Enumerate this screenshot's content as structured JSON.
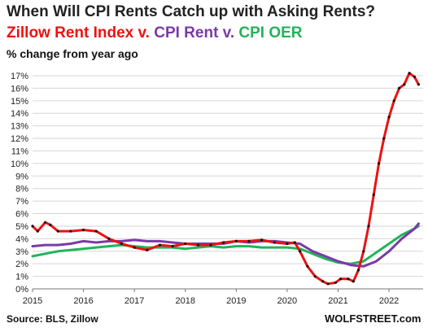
{
  "title": "When Will CPI Rents Catch up with Asking Rents?",
  "subtitle_parts": [
    {
      "text": "Zillow Rent Index v. ",
      "color": "#ee1111"
    },
    {
      "text": "CPI Rent v. ",
      "color": "#7a3aa8"
    },
    {
      "text": "CPI OER",
      "color": "#22b35a"
    }
  ],
  "unit_label": "% change from year ago",
  "source": "Source: BLS, Zillow",
  "brand": "WOLFSTREET.com",
  "chart_data": {
    "type": "line",
    "title": "When Will CPI Rents Catch up with Asking Rents?",
    "ylabel": "% change from year ago",
    "ylim": [
      0,
      17
    ],
    "yticks": [
      "0%",
      "1%",
      "2%",
      "3%",
      "4%",
      "5%",
      "6%",
      "7%",
      "8%",
      "9%",
      "10%",
      "11%",
      "12%",
      "13%",
      "14%",
      "15%",
      "16%",
      "17%"
    ],
    "xticks": [
      "2015",
      "2016",
      "2017",
      "2018",
      "2019",
      "2020",
      "2021",
      "2022"
    ],
    "grid": "horizontal",
    "series": [
      {
        "name": "Zillow Rent Index",
        "color": "#ee1111",
        "points": [
          [
            2015.0,
            5.0
          ],
          [
            2015.1,
            4.6
          ],
          [
            2015.25,
            5.3
          ],
          [
            2015.35,
            5.1
          ],
          [
            2015.5,
            4.6
          ],
          [
            2015.75,
            4.6
          ],
          [
            2016.0,
            4.7
          ],
          [
            2016.25,
            4.6
          ],
          [
            2016.5,
            4.0
          ],
          [
            2016.75,
            3.6
          ],
          [
            2017.0,
            3.3
          ],
          [
            2017.25,
            3.1
          ],
          [
            2017.5,
            3.5
          ],
          [
            2017.75,
            3.4
          ],
          [
            2018.0,
            3.6
          ],
          [
            2018.25,
            3.5
          ],
          [
            2018.5,
            3.5
          ],
          [
            2018.75,
            3.7
          ],
          [
            2019.0,
            3.8
          ],
          [
            2019.25,
            3.8
          ],
          [
            2019.5,
            3.9
          ],
          [
            2019.75,
            3.7
          ],
          [
            2020.0,
            3.6
          ],
          [
            2020.15,
            3.7
          ],
          [
            2020.25,
            3.0
          ],
          [
            2020.4,
            1.8
          ],
          [
            2020.55,
            1.0
          ],
          [
            2020.7,
            0.6
          ],
          [
            2020.8,
            0.4
          ],
          [
            2020.95,
            0.5
          ],
          [
            2021.05,
            0.8
          ],
          [
            2021.2,
            0.8
          ],
          [
            2021.3,
            0.6
          ],
          [
            2021.4,
            1.5
          ],
          [
            2021.5,
            3.0
          ],
          [
            2021.6,
            5.0
          ],
          [
            2021.7,
            7.5
          ],
          [
            2021.8,
            10.0
          ],
          [
            2021.9,
            12.0
          ],
          [
            2022.0,
            13.7
          ],
          [
            2022.1,
            15.0
          ],
          [
            2022.2,
            16.0
          ],
          [
            2022.3,
            16.3
          ],
          [
            2022.4,
            17.2
          ],
          [
            2022.5,
            16.9
          ],
          [
            2022.58,
            16.3
          ]
        ]
      },
      {
        "name": "CPI Rent",
        "color": "#7a3aa8",
        "points": [
          [
            2015.0,
            3.4
          ],
          [
            2015.25,
            3.5
          ],
          [
            2015.5,
            3.5
          ],
          [
            2015.75,
            3.6
          ],
          [
            2016.0,
            3.8
          ],
          [
            2016.25,
            3.7
          ],
          [
            2016.5,
            3.8
          ],
          [
            2016.75,
            3.8
          ],
          [
            2017.0,
            3.9
          ],
          [
            2017.25,
            3.8
          ],
          [
            2017.5,
            3.8
          ],
          [
            2017.75,
            3.7
          ],
          [
            2018.0,
            3.6
          ],
          [
            2018.25,
            3.6
          ],
          [
            2018.5,
            3.6
          ],
          [
            2018.75,
            3.6
          ],
          [
            2019.0,
            3.8
          ],
          [
            2019.25,
            3.7
          ],
          [
            2019.5,
            3.8
          ],
          [
            2019.75,
            3.8
          ],
          [
            2020.0,
            3.7
          ],
          [
            2020.25,
            3.6
          ],
          [
            2020.5,
            3.0
          ],
          [
            2020.75,
            2.6
          ],
          [
            2021.0,
            2.2
          ],
          [
            2021.25,
            1.9
          ],
          [
            2021.5,
            1.8
          ],
          [
            2021.75,
            2.2
          ],
          [
            2022.0,
            3.0
          ],
          [
            2022.25,
            4.0
          ],
          [
            2022.5,
            4.8
          ],
          [
            2022.58,
            5.2
          ]
        ]
      },
      {
        "name": "CPI OER",
        "color": "#22b35a",
        "points": [
          [
            2015.0,
            2.6
          ],
          [
            2015.25,
            2.8
          ],
          [
            2015.5,
            3.0
          ],
          [
            2015.75,
            3.1
          ],
          [
            2016.0,
            3.2
          ],
          [
            2016.25,
            3.3
          ],
          [
            2016.5,
            3.4
          ],
          [
            2016.75,
            3.5
          ],
          [
            2017.0,
            3.4
          ],
          [
            2017.25,
            3.3
          ],
          [
            2017.5,
            3.3
          ],
          [
            2017.75,
            3.3
          ],
          [
            2018.0,
            3.2
          ],
          [
            2018.25,
            3.3
          ],
          [
            2018.5,
            3.4
          ],
          [
            2018.75,
            3.3
          ],
          [
            2019.0,
            3.4
          ],
          [
            2019.25,
            3.4
          ],
          [
            2019.5,
            3.3
          ],
          [
            2019.75,
            3.3
          ],
          [
            2020.0,
            3.3
          ],
          [
            2020.25,
            3.2
          ],
          [
            2020.5,
            2.8
          ],
          [
            2020.75,
            2.4
          ],
          [
            2021.0,
            2.1
          ],
          [
            2021.25,
            2.0
          ],
          [
            2021.5,
            2.2
          ],
          [
            2021.75,
            2.9
          ],
          [
            2022.0,
            3.6
          ],
          [
            2022.25,
            4.3
          ],
          [
            2022.5,
            4.8
          ],
          [
            2022.58,
            5.0
          ]
        ]
      }
    ]
  }
}
